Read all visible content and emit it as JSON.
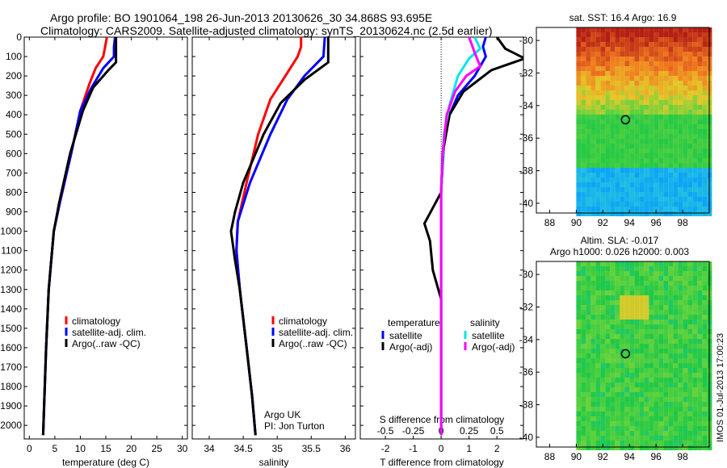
{
  "header": {
    "line1": "Argo profile: BO 1901064_198 26-Jun-2013 20130626_30 34.868S 93.695E",
    "line2": "Climatology: CARS2009. Satellite-adjusted climatology: synTS_20130624.nc (2.5d earlier)"
  },
  "colors": {
    "clim": "#ff0000",
    "sat": "#0000ff",
    "argo": "#000000",
    "sal_sat": "#00e6e6",
    "sal_argo": "#ff00ff"
  },
  "chart_data": [
    {
      "type": "line",
      "xlabel": "temperature (deg C)",
      "xlim": [
        -1,
        31
      ],
      "xticks": [
        "0",
        "5",
        "10",
        "15",
        "20",
        "25",
        "30"
      ],
      "ylim": [
        2070,
        0
      ],
      "yticks": [
        "0",
        "100",
        "200",
        "300",
        "400",
        "500",
        "600",
        "700",
        "800",
        "900",
        "1000",
        "1100",
        "1200",
        "1300",
        "1400",
        "1500",
        "1600",
        "1700",
        "1800",
        "1900",
        "2000"
      ],
      "legend": [
        "climatology",
        "satellite-adj. clim.",
        "Argo(..raw -QC)"
      ],
      "series": [
        {
          "name": "climatology",
          "color": "#ff0000",
          "points": [
            [
              15.2,
              0
            ],
            [
              15.0,
              30
            ],
            [
              14.8,
              60
            ],
            [
              14.5,
              100
            ],
            [
              13.0,
              160
            ],
            [
              11.8,
              240
            ],
            [
              10.0,
              380
            ],
            [
              8.2,
              600
            ],
            [
              6.0,
              850
            ],
            [
              4.8,
              1000
            ],
            [
              3.8,
              1300
            ],
            [
              3.3,
              1600
            ],
            [
              2.9,
              1900
            ],
            [
              2.7,
              2050
            ]
          ]
        },
        {
          "name": "satellite-adj. clim.",
          "color": "#0000ff",
          "points": [
            [
              16.8,
              0
            ],
            [
              16.6,
              50
            ],
            [
              16.6,
              100
            ],
            [
              14.5,
              160
            ],
            [
              12.2,
              260
            ],
            [
              10.0,
              380
            ],
            [
              8.2,
              600
            ],
            [
              6.0,
              850
            ],
            [
              4.8,
              1000
            ],
            [
              3.8,
              1300
            ],
            [
              3.3,
              1600
            ],
            [
              2.9,
              1900
            ],
            [
              2.7,
              2050
            ]
          ]
        },
        {
          "name": "Argo(..raw -QC)",
          "color": "#000000",
          "points": [
            [
              17.0,
              0
            ],
            [
              17.0,
              130
            ],
            [
              15.5,
              170
            ],
            [
              12.5,
              260
            ],
            [
              10.5,
              380
            ],
            [
              8.0,
              600
            ],
            [
              5.8,
              860
            ],
            [
              4.8,
              1000
            ],
            [
              3.8,
              1300
            ],
            [
              3.3,
              1600
            ],
            [
              2.9,
              1900
            ],
            [
              2.7,
              2050
            ]
          ]
        }
      ],
      "annotations": []
    },
    {
      "type": "line",
      "xlabel": "salinity",
      "xlim": [
        33.75,
        36.15
      ],
      "xticks": [
        "34",
        "34.5",
        "35",
        "35.5",
        "36"
      ],
      "ylim": [
        2070,
        0
      ],
      "legend": [
        "climatology",
        "satellite-adj. clim.",
        "Argo(..raw -QC)"
      ],
      "series": [
        {
          "name": "climatology",
          "color": "#ff0000",
          "points": [
            [
              35.35,
              0
            ],
            [
              35.35,
              50
            ],
            [
              35.3,
              100
            ],
            [
              35.12,
              200
            ],
            [
              34.9,
              320
            ],
            [
              34.72,
              500
            ],
            [
              34.55,
              750
            ],
            [
              34.42,
              950
            ],
            [
              34.4,
              1100
            ],
            [
              34.45,
              1300
            ],
            [
              34.55,
              1600
            ],
            [
              34.63,
              1850
            ],
            [
              34.68,
              2050
            ]
          ]
        },
        {
          "name": "satellite-adj. clim.",
          "color": "#0000ff",
          "points": [
            [
              35.7,
              0
            ],
            [
              35.68,
              100
            ],
            [
              35.4,
              200
            ],
            [
              35.15,
              320
            ],
            [
              34.9,
              500
            ],
            [
              34.6,
              750
            ],
            [
              34.42,
              950
            ],
            [
              34.4,
              1100
            ],
            [
              34.45,
              1300
            ],
            [
              34.55,
              1600
            ],
            [
              34.63,
              1850
            ],
            [
              34.68,
              2050
            ]
          ]
        },
        {
          "name": "Argo(..raw -QC)",
          "color": "#000000",
          "points": [
            [
              35.75,
              0
            ],
            [
              35.75,
              130
            ],
            [
              35.4,
              220
            ],
            [
              35.05,
              340
            ],
            [
              34.8,
              500
            ],
            [
              34.5,
              750
            ],
            [
              34.38,
              900
            ],
            [
              34.32,
              1000
            ],
            [
              34.38,
              1150
            ],
            [
              34.45,
              1300
            ],
            [
              34.55,
              1600
            ],
            [
              34.63,
              1850
            ],
            [
              34.68,
              2050
            ]
          ]
        }
      ],
      "annotations": [
        "Argo UK",
        "PI: Jon Turton"
      ]
    },
    {
      "type": "line",
      "xlabel": "T difference from climatology",
      "xlabel_top": "S difference from climatology",
      "xlim": [
        -2.9,
        2.95
      ],
      "xticks": [
        "-2",
        "-1",
        "0",
        "1",
        "2"
      ],
      "xticks_top": [
        "-0.5",
        "-0.25",
        "0",
        "0.25",
        "0.5"
      ],
      "ylim": [
        2070,
        0
      ],
      "legend_titles": [
        "temperature",
        "salinity"
      ],
      "legend": [
        "satellite",
        "Argo(-adj)",
        "satellite",
        "Argo(-adj)"
      ],
      "series": [
        {
          "name": "satellite",
          "color": "#0000ff",
          "points": [
            [
              1.6,
              0
            ],
            [
              1.5,
              50
            ],
            [
              1.6,
              100
            ],
            [
              1.2,
              200
            ],
            [
              0.6,
              300
            ],
            [
              0.3,
              400
            ],
            [
              0.1,
              550
            ],
            [
              0.0,
              800
            ],
            [
              0.0,
              1100
            ],
            [
              0.0,
              1500
            ],
            [
              0.0,
              2050
            ]
          ]
        },
        {
          "name": "Argo(-adj)",
          "color": "#000000",
          "points": [
            [
              2.0,
              0
            ],
            [
              2.3,
              60
            ],
            [
              3.0,
              110
            ],
            [
              1.8,
              170
            ],
            [
              0.8,
              280
            ],
            [
              0.3,
              400
            ],
            [
              0.05,
              600
            ],
            [
              0.0,
              800
            ],
            [
              -0.3,
              880
            ],
            [
              -0.6,
              960
            ],
            [
              -0.4,
              1050
            ],
            [
              -0.3,
              1200
            ],
            [
              0.0,
              1350
            ],
            [
              0.0,
              2050
            ]
          ]
        },
        {
          "name": "salinity satellite",
          "color": "#00e6e6",
          "points": [
            [
              1.2,
              0
            ],
            [
              1.4,
              60
            ],
            [
              1.0,
              110
            ],
            [
              0.6,
              200
            ],
            [
              0.3,
              350
            ],
            [
              0.1,
              500
            ],
            [
              0.0,
              800
            ],
            [
              0.0,
              2050
            ]
          ]
        },
        {
          "name": "salinity Argo(-adj)",
          "color": "#ff00ff",
          "points": [
            [
              1.0,
              0
            ],
            [
              1.2,
              80
            ],
            [
              1.4,
              150
            ],
            [
              0.9,
              200
            ],
            [
              0.5,
              280
            ],
            [
              0.2,
              400
            ],
            [
              0.05,
              600
            ],
            [
              0.0,
              800
            ],
            [
              0.0,
              2050
            ]
          ]
        }
      ],
      "annotations": []
    },
    {
      "type": "heatmap",
      "title": "sat. SST: 16.4 Argo: 16.9",
      "xlim": [
        87,
        100
      ],
      "ylim": [
        -40.6,
        -29.2
      ],
      "xticks": [
        "88",
        "90",
        "92",
        "94",
        "96",
        "98"
      ],
      "yticks": [
        "-30",
        "-32",
        "-34",
        "-36",
        "-38",
        "-40"
      ],
      "marker": {
        "lon": 93.7,
        "lat": -34.87
      }
    },
    {
      "type": "heatmap",
      "title": "Altim. SLA: -0.017",
      "subtitle": "Argo h1000: 0.026 h2000: 0.003",
      "xlim": [
        87,
        100
      ],
      "ylim": [
        -40.6,
        -29.2
      ],
      "xticks": [
        "88",
        "90",
        "92",
        "94",
        "96",
        "98"
      ],
      "yticks": [
        "-30",
        "-32",
        "-34",
        "-36",
        "-38",
        "-40"
      ],
      "marker": {
        "lon": 93.7,
        "lat": -34.87
      }
    }
  ],
  "stamp": "IMOS 01-Jul-2013 17:00:23"
}
